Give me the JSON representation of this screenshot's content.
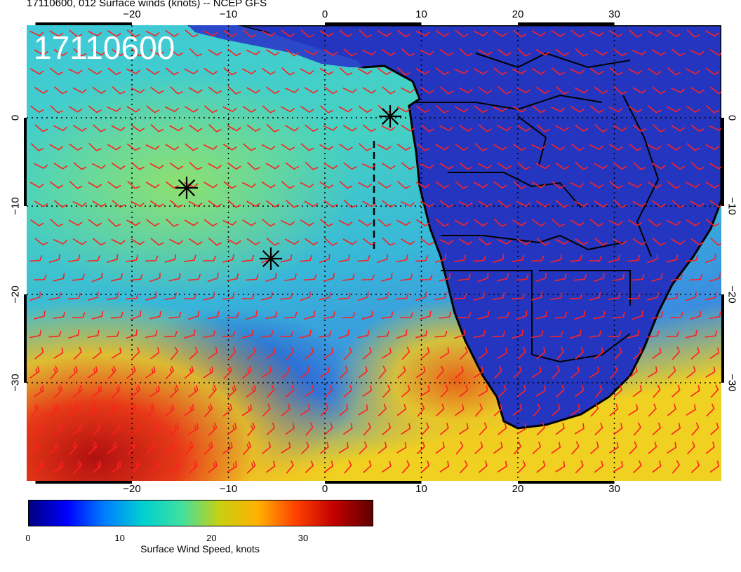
{
  "header": {
    "title": "17110600, 012 Surface winds (knots) -- NCEP GFS"
  },
  "map": {
    "timestamp": "17110600",
    "lon_ticks": [
      "−20",
      "−10",
      "0",
      "10",
      "20",
      "30"
    ],
    "lat_ticks": [
      "0",
      "−10",
      "−20",
      "−30"
    ],
    "storm_markers": 3,
    "colors": {
      "ocean_calm": "#2b3fd1",
      "ocean_mid": "#3ec8c8",
      "ocean_fast": "#e8d020",
      "ocean_max": "#c81818",
      "land": "#1f2eb8",
      "barb": "#ff2020",
      "coast": "#000000"
    }
  },
  "colorbar": {
    "title": "Surface Wind Speed, knots",
    "tick_labels": [
      "0",
      "10",
      "20",
      "30"
    ],
    "stops": [
      "#00007f",
      "#0000ff",
      "#0080ff",
      "#00d0d0",
      "#40e0a0",
      "#c8d010",
      "#ffb000",
      "#ff4000",
      "#c00000",
      "#600000"
    ]
  }
}
